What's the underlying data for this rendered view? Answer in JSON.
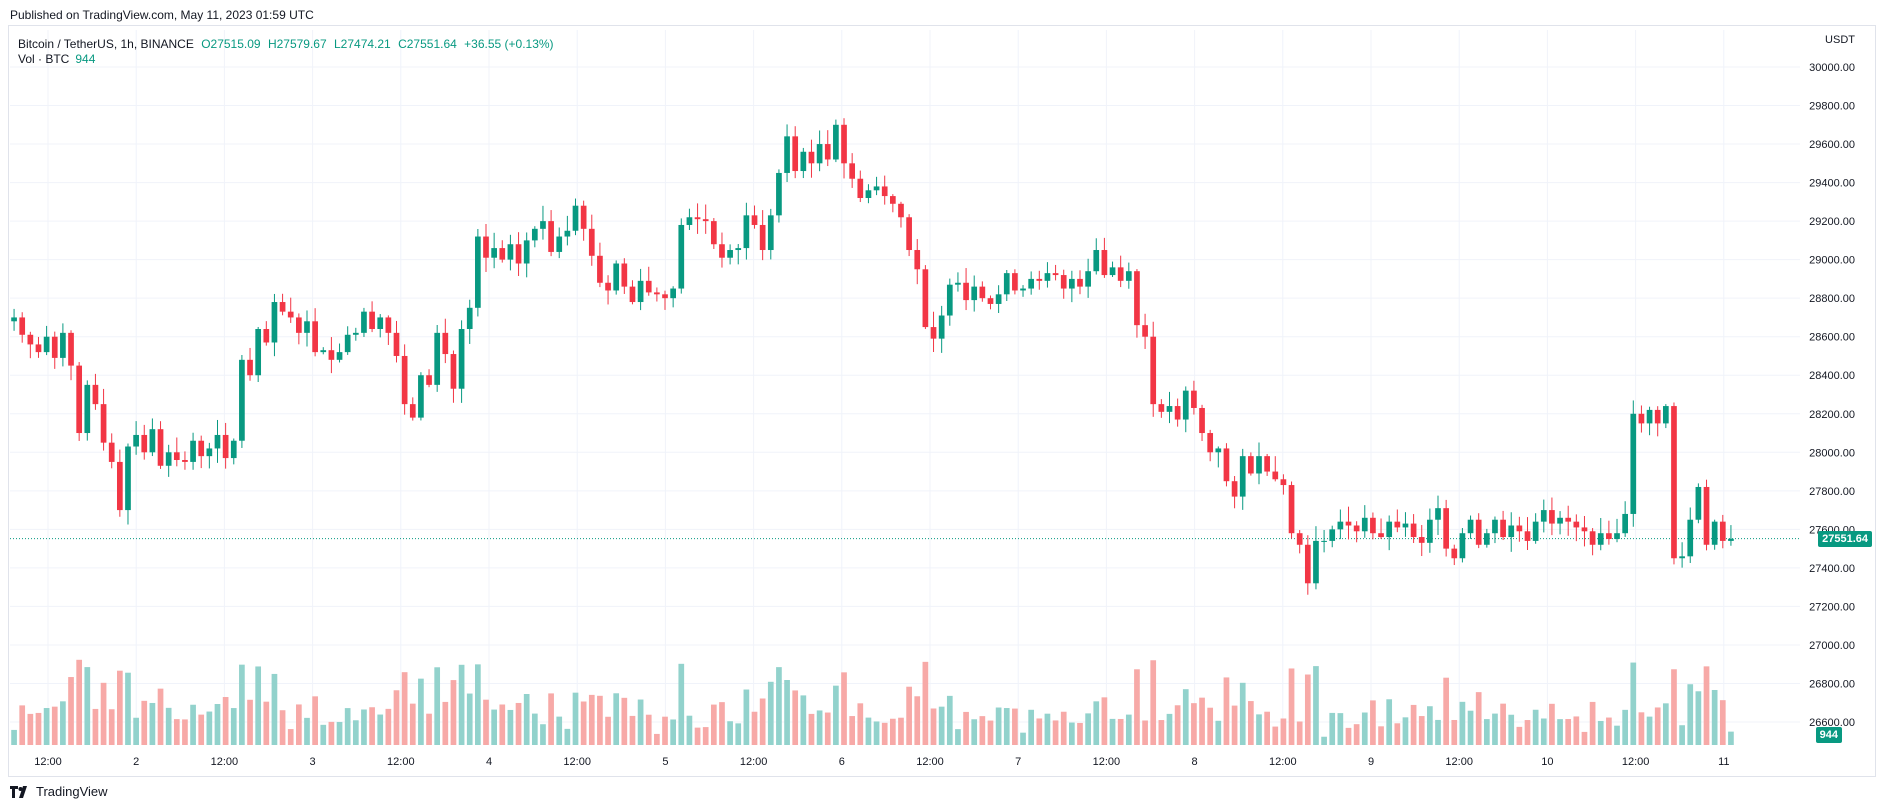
{
  "header": {
    "published": "Published on TradingView.com, May 11, 2023 01:59 UTC"
  },
  "legend": {
    "symbol": "Bitcoin / TetherUS, 1h, BINANCE",
    "open": "O27515.09",
    "high": "H27579.67",
    "low": "L27474.21",
    "close": "C27551.64",
    "change": "+36.55 (+0.13%)",
    "vol_label": "Vol · BTC",
    "vol_value": "944"
  },
  "axis": {
    "currency": "USDT",
    "last_price_tag": "27551.64",
    "last_volume_tag": "944"
  },
  "footer": {
    "brand": "TradingView"
  },
  "colors": {
    "up": "#089981",
    "down": "#f23645",
    "up_vol": "#92d2cc",
    "down_vol": "#f7a9a7",
    "grid": "#f0f3fa"
  },
  "chart_data": {
    "type": "candlestick",
    "y_ticks": [
      "30000.00",
      "29800.00",
      "29600.00",
      "29400.00",
      "29200.00",
      "29000.00",
      "28800.00",
      "28600.00",
      "28400.00",
      "28200.00",
      "28000.00",
      "27800.00",
      "27600.00",
      "27400.00",
      "27200.00",
      "27000.00",
      "26800.00",
      "26600.00"
    ],
    "x_ticks": [
      "12:00",
      "2",
      "12:00",
      "3",
      "12:00",
      "4",
      "12:00",
      "5",
      "12:00",
      "6",
      "12:00",
      "7",
      "12:00",
      "8",
      "12:00",
      "9",
      "12:00",
      "10",
      "12:00",
      "11"
    ],
    "ylim": [
      26400,
      30100
    ],
    "last_close": 27551.64,
    "closes": [
      28700,
      28610,
      28560,
      28520,
      28600,
      28490,
      28620,
      28450,
      28100,
      28350,
      28250,
      28050,
      27950,
      27700,
      28030,
      28090,
      28000,
      28120,
      27930,
      28000,
      27960,
      27950,
      28060,
      27980,
      28020,
      28090,
      27970,
      28060,
      28480,
      28400,
      28640,
      28570,
      28780,
      28730,
      28700,
      28620,
      28680,
      28520,
      28530,
      28480,
      28520,
      28610,
      28620,
      28730,
      28640,
      28700,
      28620,
      28500,
      28250,
      28180,
      28400,
      28350,
      28620,
      28510,
      28330,
      28640,
      28750,
      29120,
      29010,
      29060,
      29000,
      29080,
      28980,
      29100,
      29160,
      29200,
      29040,
      29120,
      29150,
      29280,
      29160,
      29020,
      28880,
      28840,
      28980,
      28860,
      28780,
      28890,
      28830,
      28820,
      28800,
      28850,
      29180,
      29220,
      29210,
      29200,
      29080,
      29010,
      29050,
      29060,
      29230,
      29180,
      29050,
      29230,
      29450,
      29640,
      29460,
      29560,
      29500,
      29600,
      29520,
      29700,
      29500,
      29420,
      29320,
      29360,
      29380,
      29330,
      29290,
      29220,
      29050,
      28950,
      28650,
      28590,
      28710,
      28870,
      28880,
      28790,
      28860,
      28800,
      28770,
      28820,
      28930,
      28840,
      28850,
      28900,
      28890,
      28930,
      28920,
      28850,
      28900,
      28860,
      28940,
      29050,
      28920,
      28960,
      28890,
      28940,
      28660,
      28600,
      28250,
      28210,
      28240,
      28170,
      28320,
      28230,
      28100,
      28000,
      28020,
      27850,
      27770,
      27980,
      27890,
      27980,
      27900,
      27860,
      27830,
      27580,
      27520,
      27320,
      27540,
      27540,
      27600,
      27640,
      27620,
      27590,
      27660,
      27580,
      27560,
      27640,
      27610,
      27630,
      27560,
      27530,
      27650,
      27710,
      27500,
      27450,
      27580,
      27650,
      27520,
      27580,
      27650,
      27560,
      27620,
      27590,
      27540,
      27640,
      27700,
      27630,
      27660,
      27640,
      27610,
      27590,
      27520,
      27580,
      27550,
      27580,
      27680,
      28200,
      28150,
      28220,
      28150,
      28240,
      27450,
      27460,
      27650,
      27820,
      27520,
      27640,
      27540,
      27551
    ]
  }
}
